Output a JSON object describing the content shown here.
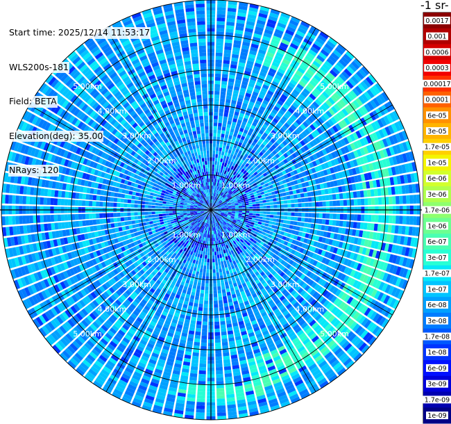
{
  "header": {
    "start_time": "Start time: 2025/12/14 11:53:17",
    "instrument": "WLS200s-181",
    "field": "Field: BETA",
    "elevation": "Elevation(deg): 35.00",
    "nrays": "NRays: 120"
  },
  "colorbar": {
    "title": "-1 sr-",
    "labels": [
      "0.0017",
      "0.001",
      "0.0006",
      "0.0003",
      "0.00017",
      "0.0001",
      "6e-05",
      "3e-05",
      "1.7e-05",
      "1e-05",
      "6e-06",
      "3e-06",
      "1.7e-06",
      "1e-06",
      "6e-07",
      "3e-07",
      "1.7e-07",
      "1e-07",
      "6e-08",
      "3e-08",
      "1.7e-08",
      "1e-08",
      "6e-09",
      "3e-09",
      "1.7e-09",
      "1e-09"
    ],
    "colors": [
      "#8b0000",
      "#b00000",
      "#d40000",
      "#f20000",
      "#ff3000",
      "#ff6000",
      "#ff9000",
      "#ffb400",
      "#ffd000",
      "#f4f400",
      "#d2ff2c",
      "#b0ff4c",
      "#8eff6e",
      "#6cff90",
      "#4affb2",
      "#28ffd4",
      "#06e8f8",
      "#00c4ff",
      "#00a0ff",
      "#007cff",
      "#0058ff",
      "#0034ff",
      "#0010ff",
      "#0000da",
      "#0000b0",
      "#000086"
    ]
  },
  "chart_data": {
    "type": "heatmap",
    "title": "",
    "field": "BETA",
    "elevation_deg": 35.0,
    "nrays": 120,
    "range_ring_labels": [
      "1.00km",
      "2.00km",
      "3.00km",
      "4.00km",
      "5.00km"
    ],
    "range_rings_km": [
      1,
      2,
      3,
      4,
      5
    ],
    "max_range_km": 6.0,
    "color_scale": "log",
    "value_range": [
      1e-09,
      0.0017
    ],
    "background_level": 6e-08,
    "features": [
      {
        "name": "enhanced-arc",
        "range_km": [
          4.4,
          5.3
        ],
        "azimuth_deg": [
          20,
          165
        ],
        "level": 3e-07
      },
      {
        "name": "enhanced-arc-south",
        "range_km": [
          5.0,
          5.5
        ],
        "azimuth_deg": [
          165,
          190
        ],
        "level": 3e-07
      }
    ]
  }
}
